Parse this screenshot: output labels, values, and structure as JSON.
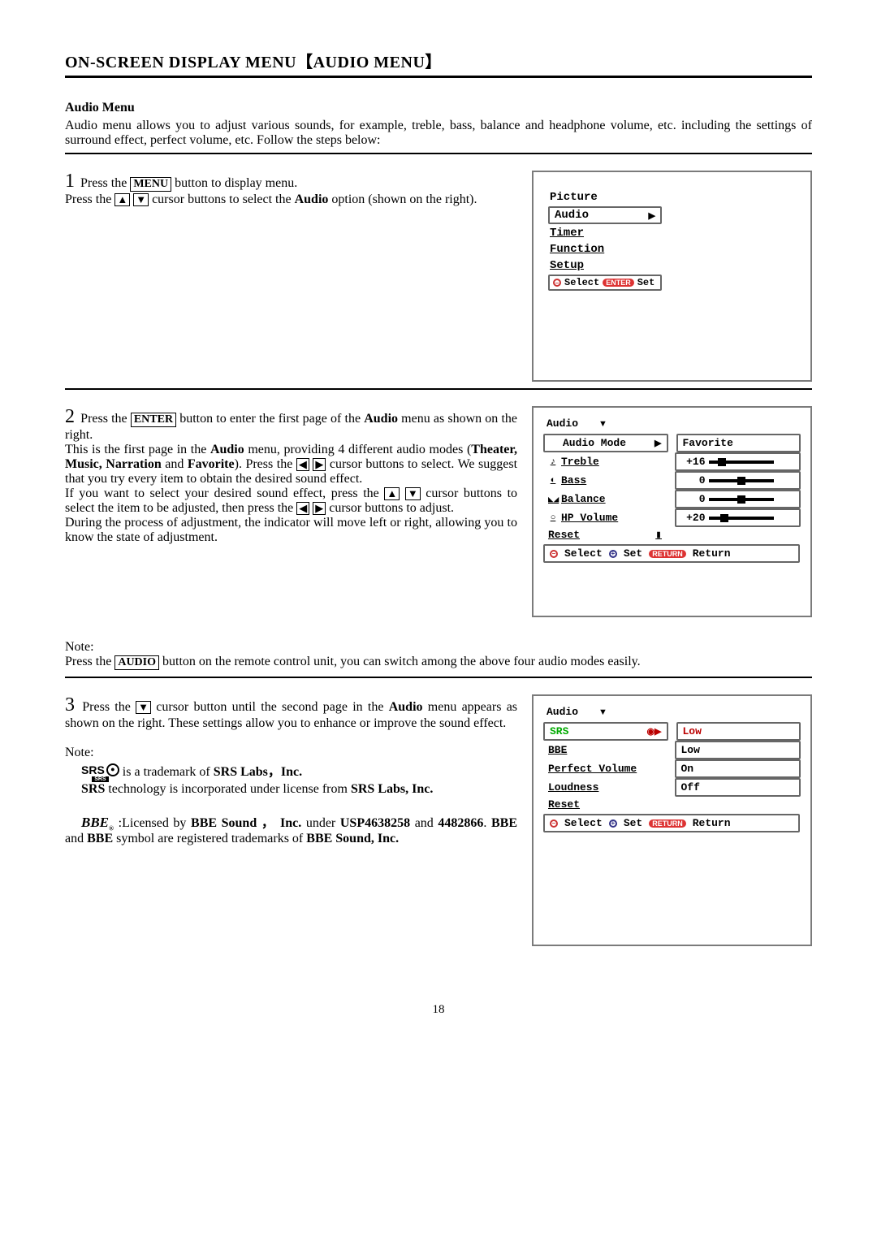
{
  "title": "ON-SCREEN DISPLAY MENU【AUDIO MENU】",
  "section": {
    "heading": "Audio Menu",
    "intro": "Audio menu allows you to adjust various sounds, for example, treble, bass, balance and headphone volume, etc. including the settings of surround effect, perfect volume, etc. Follow the steps below:"
  },
  "step1": {
    "num": "1",
    "line1a": "Press the ",
    "btn": "MENU",
    "line1b": " button to display menu.",
    "line2a": "Press the ",
    "line2b": " cursor buttons to select the ",
    "bold": "Audio",
    "line2c": " option (shown on the right).",
    "menu": {
      "items": [
        "Picture",
        "Audio",
        "Timer",
        "Function",
        "Setup"
      ],
      "hint_select": "Select",
      "hint_enter": "ENTER",
      "hint_set": "Set"
    }
  },
  "step2": {
    "num": "2",
    "p1a": "Press the ",
    "btn": "ENTER",
    "p1b": " button to enter the first page of the ",
    "p1c": "Audio",
    "p1d": " menu as shown on the right.",
    "p2a": "This is the first page in the ",
    "p2b": "Audio",
    "p2c": " menu, providing 4 different audio modes (",
    "p2d": "Theater, Music, Narration",
    "p2e": " and ",
    "p2f": "Favorite",
    "p2g": "). Press the ",
    "p2h": " cursor buttons to select. We suggest that you try every item to obtain the desired sound effect.",
    "p3a": "If you want to select your desired sound effect, press the ",
    "p3b": " cursor buttons to select the item to be adjusted, then press the ",
    "p3c": " cursor buttons to adjust.",
    "p4": "During the process of adjustment, the indicator will move left or right, allowing you to know the state of adjustment.",
    "menu": {
      "title": "Audio",
      "rows": [
        {
          "icon": "",
          "label": "Audio Mode",
          "arrow": "▶",
          "value": "Favorite",
          "type": "text"
        },
        {
          "icon": "♪",
          "label": "Treble",
          "value": "+16",
          "type": "slider",
          "pos": 0.15
        },
        {
          "icon": "◐",
          "label": "Bass",
          "value": "0",
          "type": "slider",
          "pos": 0.5
        },
        {
          "icon": "◣◢",
          "label": "Balance",
          "value": "0",
          "type": "slider",
          "pos": 0.5
        },
        {
          "icon": "○",
          "label": "HP Volume",
          "value": "+20",
          "type": "slider",
          "pos": 0.2
        },
        {
          "icon": "",
          "label": "Reset",
          "value": "",
          "type": "reset"
        }
      ],
      "hint_select": "Select",
      "hint_set": "Set",
      "hint_return": "RETURN",
      "hint_return2": "Return"
    }
  },
  "note2": {
    "label": "Note:",
    "a": "Press the ",
    "btn": "AUDIO",
    "b": " button on the remote control unit, you can switch among the above four audio modes easily."
  },
  "step3": {
    "num": "3",
    "p1a": "Press the ",
    "p1b": " cursor button until the second page in the ",
    "p1c": "Audio",
    "p1d": " menu appears as shown on the right. These settings allow you to enhance or improve the sound effect.",
    "note_label": "Note:",
    "srs_a": " is a trademark of ",
    "srs_b": "SRS Labs，Inc.",
    "srs2a": "SRS",
    "srs2b": " technology is incorporated under license from ",
    "srs2c": "SRS Labs, Inc.",
    "bbe_a": ":Licensed by ",
    "bbe_b": "BBE Sound ， Inc.",
    "bbe_c": " under ",
    "bbe_d": "USP4638258",
    "bbe_e": " and ",
    "bbe_f": "4482866",
    "bbe_g": ". ",
    "bbe_h": "BBE",
    "bbe_i": " and ",
    "bbe_j": "BBE",
    "bbe_k": " symbol are registered trademarks of ",
    "bbe_l": "BBE Sound, Inc.",
    "menu": {
      "title": "Audio",
      "rows": [
        {
          "label": "SRS",
          "icon": "◉▶",
          "value": "Low",
          "sel": true
        },
        {
          "label": "BBE",
          "value": "Low"
        },
        {
          "label": "Perfect Volume",
          "value": "On"
        },
        {
          "label": "Loudness",
          "value": "Off"
        },
        {
          "label": "Reset",
          "value": "",
          "type": "reset"
        }
      ],
      "hint_select": "Select",
      "hint_set": "Set",
      "hint_return": "RETURN",
      "hint_return2": "Return"
    }
  },
  "pagenum": "18"
}
